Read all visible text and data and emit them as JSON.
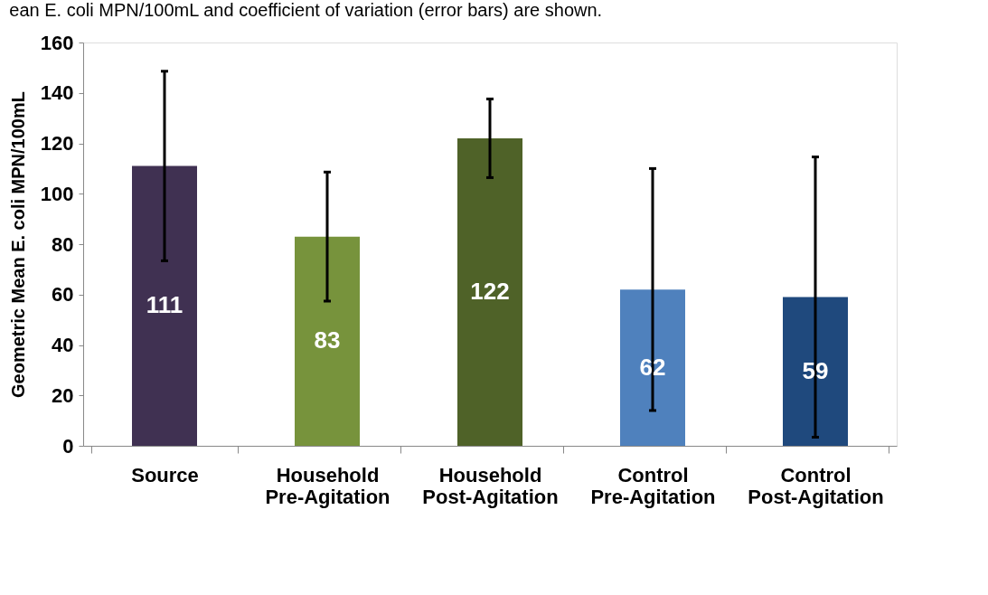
{
  "chart_data": {
    "type": "bar",
    "categories": [
      "Source",
      "Household Pre-Agitation",
      "Household Post-Agitation",
      "Control Pre-Agitation",
      "Control Post-Agitation"
    ],
    "values": [
      111,
      83,
      122,
      62,
      59
    ],
    "colors": [
      "#403152",
      "#77933c",
      "#4f6228",
      "#4f81bd",
      "#1f497d"
    ],
    "errors": [
      37.6,
      25.6,
      15.6,
      48,
      55.6
    ],
    "data_labels": true,
    "ylabel": "Geometric Mean E. coli MPN/100mL",
    "ylim": [
      0,
      160
    ],
    "yticks": [
      0,
      20,
      40,
      60,
      80,
      100,
      120,
      140,
      160
    ],
    "grid": false,
    "legend": false,
    "annotations": [
      "ean E. coli MPN/100mL and coefficient of variation (error bars) are shown."
    ]
  }
}
